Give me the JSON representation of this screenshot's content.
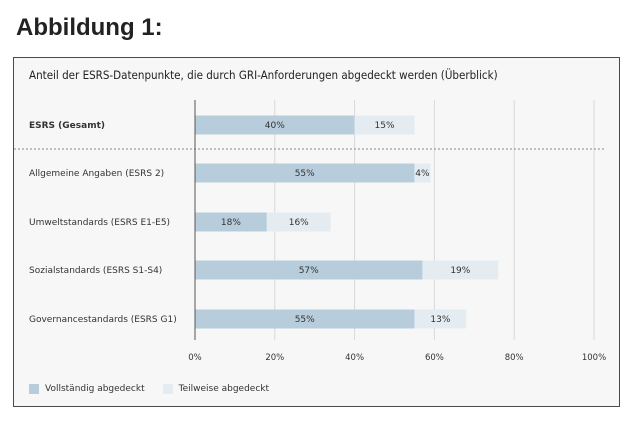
{
  "page": {
    "heading": "Abbildung 1:"
  },
  "chart_data": {
    "type": "bar",
    "orientation": "horizontal",
    "stacked": true,
    "title": "Anteil der ESRS-Datenpunkte, die durch GRI-Anforderungen abgedeckt werden (Überblick)",
    "categories": [
      "ESRS (Gesamt)",
      "Allgemeine Angaben (ESRS 2)",
      "Umweltstandards (ESRS E1-E5)",
      "Sozialstandards (ESRS S1-S4)",
      "Governancestandards (ESRS G1)"
    ],
    "bold_categories": [
      "ESRS (Gesamt)"
    ],
    "separator_after_first": true,
    "series": [
      {
        "name": "Vollständig abgedeckt",
        "values": [
          40,
          55,
          18,
          57,
          55
        ],
        "labels": [
          "40%",
          "55%",
          "18%",
          "57%",
          "55%"
        ],
        "color": "#b8cddb"
      },
      {
        "name": "Teilweise abgedeckt",
        "values": [
          15,
          4,
          16,
          19,
          13
        ],
        "labels": [
          "15%",
          "4%",
          "16%",
          "19%",
          "13%"
        ],
        "color": "#e4ecf2"
      }
    ],
    "xlim": [
      0,
      100
    ],
    "xticks": [
      0,
      20,
      40,
      60,
      80,
      100
    ],
    "xtick_labels": [
      "0%",
      "20%",
      "40%",
      "60%",
      "80%",
      "100%"
    ],
    "grid": "vertical",
    "legend_position": "bottom-left",
    "colors": {
      "panel_background": "#f7f7f7",
      "gridline": "#d8d8d8",
      "axis": "#555555"
    }
  }
}
